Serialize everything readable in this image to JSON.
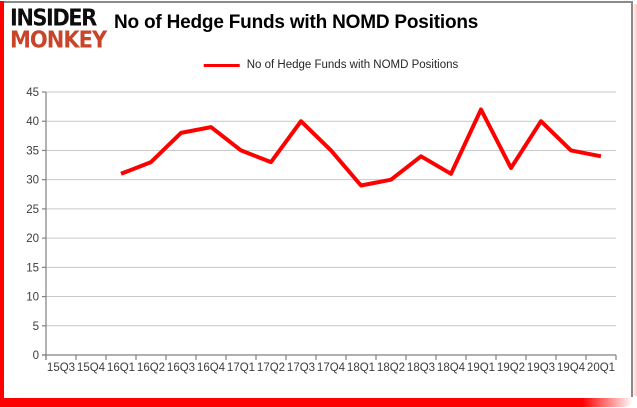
{
  "brand": {
    "line1": "INSIDER",
    "line2": "MONKEY"
  },
  "header": {
    "title": "No of Hedge Funds with NOMD Positions"
  },
  "legend": {
    "label": "No of Hedge Funds with NOMD Positions"
  },
  "colors": {
    "series": "#ff0000",
    "accent_red": "#ff0000",
    "brand_red": "#c9452a",
    "grid": "#c9c9c9",
    "axis": "#808080",
    "label": "#3d3d3d",
    "frame_border": "#8a8a8a"
  },
  "chart_data": {
    "type": "line",
    "title": "No of Hedge Funds with NOMD Positions",
    "xlabel": "",
    "ylabel": "",
    "categories": [
      "15Q3",
      "15Q4",
      "16Q1",
      "16Q2",
      "16Q3",
      "16Q4",
      "17Q1",
      "17Q2",
      "17Q3",
      "17Q4",
      "18Q1",
      "18Q2",
      "18Q3",
      "18Q4",
      "19Q1",
      "19Q2",
      "19Q3",
      "19Q4",
      "20Q1"
    ],
    "series": [
      {
        "name": "No of Hedge Funds with NOMD Positions",
        "color": "#ff0000",
        "values": [
          null,
          null,
          31,
          33,
          38,
          39,
          35,
          33,
          40,
          35,
          29,
          30,
          34,
          31,
          42,
          32,
          40,
          35,
          34
        ]
      }
    ],
    "ylim": [
      0,
      45
    ],
    "ytick_step": 5,
    "grid": "horizontal",
    "legend_position": "top-center"
  }
}
